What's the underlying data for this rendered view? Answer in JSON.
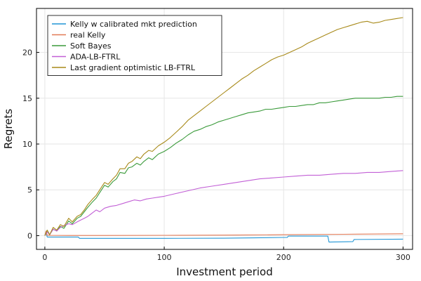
{
  "chart_data": {
    "type": "line",
    "xlabel": "Investment period",
    "ylabel": "Regrets",
    "xlim": [
      -7,
      308
    ],
    "ylim": [
      -1.5,
      24.8
    ],
    "xticks": [
      0,
      100,
      200,
      300
    ],
    "yticks": [
      0,
      5,
      10,
      15,
      20
    ],
    "grid": true,
    "legend_position": "top-left",
    "series": [
      {
        "name": "Kelly w calibrated mkt prediction",
        "color": "#2196d6",
        "points": [
          [
            0,
            0
          ],
          [
            1,
            0.3
          ],
          [
            2,
            -0.15
          ],
          [
            5,
            -0.15
          ],
          [
            10,
            -0.15
          ],
          [
            20,
            -0.15
          ],
          [
            28,
            -0.15
          ],
          [
            29,
            -0.3
          ],
          [
            60,
            -0.3
          ],
          [
            100,
            -0.3
          ],
          [
            150,
            -0.28
          ],
          [
            200,
            -0.2
          ],
          [
            203,
            -0.2
          ],
          [
            204,
            -0.05
          ],
          [
            237,
            -0.05
          ],
          [
            238,
            -0.7
          ],
          [
            258,
            -0.65
          ],
          [
            259,
            -0.42
          ],
          [
            300,
            -0.38
          ]
        ]
      },
      {
        "name": "real Kelly",
        "color": "#e27a56",
        "points": [
          [
            0,
            0
          ],
          [
            1,
            0.5
          ],
          [
            2,
            0.05
          ],
          [
            5,
            0.03
          ],
          [
            20,
            0.02
          ],
          [
            50,
            0.02
          ],
          [
            100,
            0.03
          ],
          [
            150,
            0.06
          ],
          [
            200,
            0.1
          ],
          [
            250,
            0.15
          ],
          [
            300,
            0.2
          ]
        ]
      },
      {
        "name": "Soft Bayes",
        "color": "#3a9a3a",
        "points": [
          [
            0,
            0
          ],
          [
            2,
            0.6
          ],
          [
            4,
            0.1
          ],
          [
            7,
            0.7
          ],
          [
            10,
            0.5
          ],
          [
            13,
            1.0
          ],
          [
            16,
            0.8
          ],
          [
            20,
            1.6
          ],
          [
            23,
            1.3
          ],
          [
            27,
            1.9
          ],
          [
            30,
            2.1
          ],
          [
            33,
            2.6
          ],
          [
            36,
            3.1
          ],
          [
            40,
            3.7
          ],
          [
            43,
            4.1
          ],
          [
            46,
            4.7
          ],
          [
            50,
            5.5
          ],
          [
            53,
            5.3
          ],
          [
            57,
            5.9
          ],
          [
            60,
            6.2
          ],
          [
            63,
            6.9
          ],
          [
            67,
            6.8
          ],
          [
            70,
            7.4
          ],
          [
            73,
            7.5
          ],
          [
            77,
            7.9
          ],
          [
            80,
            7.7
          ],
          [
            83,
            8.1
          ],
          [
            87,
            8.5
          ],
          [
            90,
            8.3
          ],
          [
            95,
            8.9
          ],
          [
            100,
            9.2
          ],
          [
            105,
            9.6
          ],
          [
            110,
            10.1
          ],
          [
            115,
            10.5
          ],
          [
            120,
            11.0
          ],
          [
            125,
            11.4
          ],
          [
            130,
            11.6
          ],
          [
            135,
            11.9
          ],
          [
            140,
            12.1
          ],
          [
            145,
            12.4
          ],
          [
            150,
            12.6
          ],
          [
            155,
            12.8
          ],
          [
            160,
            13.0
          ],
          [
            165,
            13.2
          ],
          [
            170,
            13.4
          ],
          [
            175,
            13.5
          ],
          [
            180,
            13.6
          ],
          [
            185,
            13.8
          ],
          [
            190,
            13.8
          ],
          [
            195,
            13.9
          ],
          [
            200,
            14.0
          ],
          [
            205,
            14.1
          ],
          [
            210,
            14.1
          ],
          [
            215,
            14.2
          ],
          [
            220,
            14.3
          ],
          [
            225,
            14.3
          ],
          [
            230,
            14.5
          ],
          [
            235,
            14.5
          ],
          [
            240,
            14.6
          ],
          [
            245,
            14.7
          ],
          [
            250,
            14.8
          ],
          [
            255,
            14.9
          ],
          [
            260,
            15.0
          ],
          [
            265,
            15.0
          ],
          [
            270,
            15.0
          ],
          [
            275,
            15.0
          ],
          [
            280,
            15.0
          ],
          [
            285,
            15.1
          ],
          [
            290,
            15.1
          ],
          [
            295,
            15.2
          ],
          [
            300,
            15.2
          ]
        ]
      },
      {
        "name": "ADA-LB-FTRL",
        "color": "#c260d6",
        "points": [
          [
            0,
            0
          ],
          [
            2,
            0.4
          ],
          [
            4,
            0.1
          ],
          [
            7,
            0.7
          ],
          [
            10,
            0.5
          ],
          [
            13,
            0.9
          ],
          [
            16,
            1.1
          ],
          [
            20,
            1.3
          ],
          [
            23,
            1.2
          ],
          [
            27,
            1.5
          ],
          [
            30,
            1.7
          ],
          [
            33,
            1.9
          ],
          [
            36,
            2.1
          ],
          [
            40,
            2.5
          ],
          [
            43,
            2.8
          ],
          [
            46,
            2.6
          ],
          [
            50,
            3.0
          ],
          [
            55,
            3.2
          ],
          [
            60,
            3.3
          ],
          [
            65,
            3.5
          ],
          [
            70,
            3.7
          ],
          [
            75,
            3.9
          ],
          [
            80,
            3.8
          ],
          [
            85,
            4.0
          ],
          [
            90,
            4.1
          ],
          [
            95,
            4.2
          ],
          [
            100,
            4.3
          ],
          [
            110,
            4.6
          ],
          [
            120,
            4.9
          ],
          [
            130,
            5.2
          ],
          [
            140,
            5.4
          ],
          [
            150,
            5.6
          ],
          [
            160,
            5.8
          ],
          [
            170,
            6.0
          ],
          [
            180,
            6.2
          ],
          [
            190,
            6.3
          ],
          [
            200,
            6.4
          ],
          [
            210,
            6.5
          ],
          [
            220,
            6.6
          ],
          [
            230,
            6.6
          ],
          [
            240,
            6.7
          ],
          [
            250,
            6.8
          ],
          [
            260,
            6.8
          ],
          [
            270,
            6.9
          ],
          [
            280,
            6.9
          ],
          [
            290,
            7.0
          ],
          [
            300,
            7.1
          ]
        ]
      },
      {
        "name": "Last gradient optimistic LB-FTRL",
        "color": "#a88a1a",
        "points": [
          [
            0,
            0
          ],
          [
            2,
            0.6
          ],
          [
            4,
            0.1
          ],
          [
            7,
            0.9
          ],
          [
            10,
            0.6
          ],
          [
            13,
            1.2
          ],
          [
            16,
            1.0
          ],
          [
            20,
            1.9
          ],
          [
            23,
            1.5
          ],
          [
            27,
            2.1
          ],
          [
            30,
            2.3
          ],
          [
            33,
            2.8
          ],
          [
            36,
            3.4
          ],
          [
            40,
            4.0
          ],
          [
            43,
            4.4
          ],
          [
            46,
            5.0
          ],
          [
            50,
            5.8
          ],
          [
            53,
            5.6
          ],
          [
            57,
            6.2
          ],
          [
            60,
            6.6
          ],
          [
            63,
            7.3
          ],
          [
            67,
            7.3
          ],
          [
            70,
            7.9
          ],
          [
            73,
            8.1
          ],
          [
            77,
            8.6
          ],
          [
            80,
            8.4
          ],
          [
            83,
            8.9
          ],
          [
            87,
            9.3
          ],
          [
            90,
            9.2
          ],
          [
            95,
            9.8
          ],
          [
            100,
            10.2
          ],
          [
            105,
            10.7
          ],
          [
            110,
            11.3
          ],
          [
            115,
            11.9
          ],
          [
            120,
            12.6
          ],
          [
            125,
            13.1
          ],
          [
            130,
            13.6
          ],
          [
            135,
            14.1
          ],
          [
            140,
            14.6
          ],
          [
            145,
            15.1
          ],
          [
            150,
            15.6
          ],
          [
            155,
            16.1
          ],
          [
            160,
            16.6
          ],
          [
            165,
            17.1
          ],
          [
            170,
            17.5
          ],
          [
            175,
            18.0
          ],
          [
            180,
            18.4
          ],
          [
            185,
            18.8
          ],
          [
            190,
            19.2
          ],
          [
            195,
            19.5
          ],
          [
            200,
            19.7
          ],
          [
            205,
            20.0
          ],
          [
            210,
            20.3
          ],
          [
            215,
            20.6
          ],
          [
            220,
            21.0
          ],
          [
            225,
            21.3
          ],
          [
            230,
            21.6
          ],
          [
            235,
            21.9
          ],
          [
            240,
            22.2
          ],
          [
            245,
            22.5
          ],
          [
            250,
            22.7
          ],
          [
            255,
            22.9
          ],
          [
            260,
            23.1
          ],
          [
            265,
            23.3
          ],
          [
            270,
            23.4
          ],
          [
            275,
            23.2
          ],
          [
            280,
            23.3
          ],
          [
            285,
            23.5
          ],
          [
            290,
            23.6
          ],
          [
            295,
            23.7
          ],
          [
            300,
            23.8
          ]
        ]
      }
    ]
  }
}
